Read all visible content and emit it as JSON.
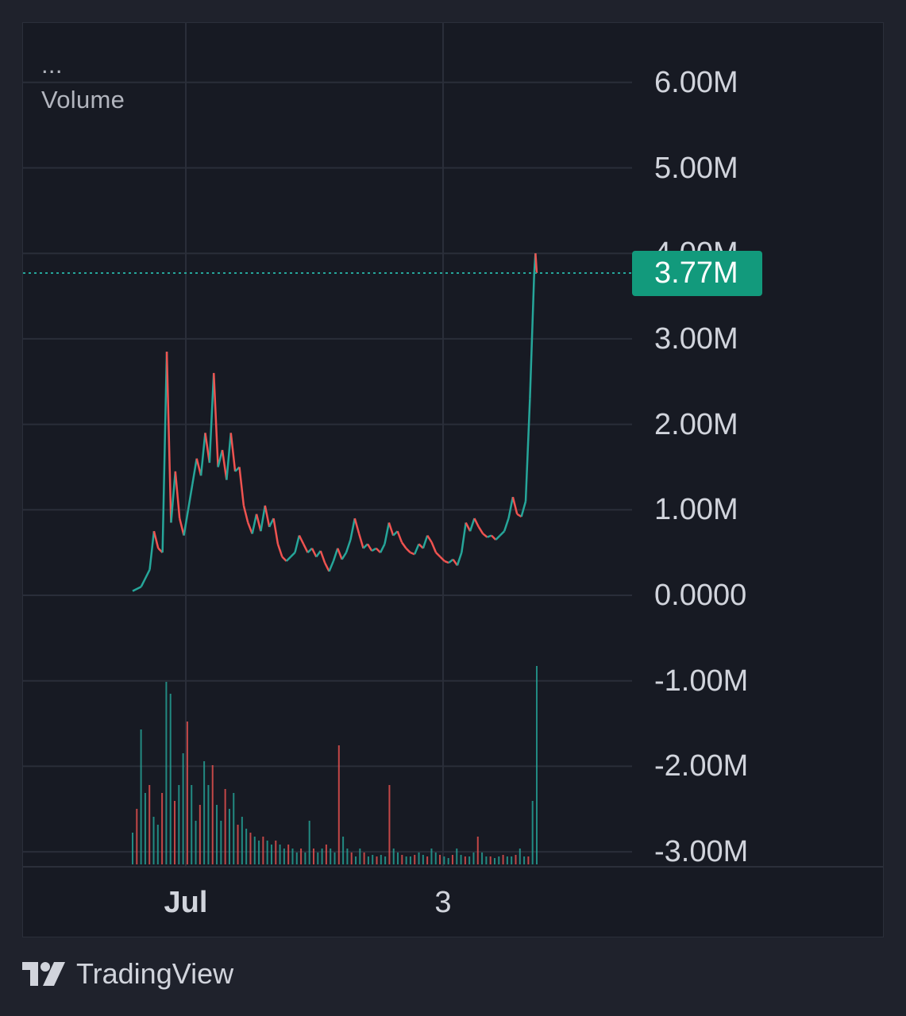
{
  "legend": {
    "dots": "...",
    "label": "Volume"
  },
  "price_badge": {
    "value": "3.77M",
    "color": "#129a7c"
  },
  "branding": {
    "logo_icon": "tradingview-logo-icon",
    "name": "TradingView"
  },
  "colors": {
    "up": "#26a69a",
    "down": "#ef5350",
    "grid": "#2a2e39",
    "background": "#171a23"
  },
  "chart_data": {
    "type": "candlestick",
    "title": "",
    "legend_label": "Volume",
    "y_axis": {
      "range": [
        -3000000,
        6000000
      ],
      "ticks": [
        {
          "value": 6000000,
          "label": "6.00M"
        },
        {
          "value": 5000000,
          "label": "5.00M"
        },
        {
          "value": 3000000,
          "label": "3.00M"
        },
        {
          "value": 2000000,
          "label": "2.00M"
        },
        {
          "value": 1000000,
          "label": "1.00M"
        },
        {
          "value": 0,
          "label": "0.0000"
        },
        {
          "value": -1000000,
          "label": "-1.00M"
        },
        {
          "value": -2000000,
          "label": "-2.00M"
        },
        {
          "value": -3000000,
          "label": "-3.00M"
        }
      ]
    },
    "x_axis": {
      "ticks": [
        {
          "label": "Jul"
        },
        {
          "label": "3"
        }
      ]
    },
    "current_value": 3770000,
    "current_value_label": "3.77M",
    "grid": true,
    "price_line_points": [
      [
        0,
        0.05
      ],
      [
        2,
        0.1
      ],
      [
        4,
        0.3
      ],
      [
        5,
        0.75
      ],
      [
        6,
        0.55
      ],
      [
        7,
        0.5
      ],
      [
        8,
        2.85
      ],
      [
        9,
        0.85
      ],
      [
        10,
        1.45
      ],
      [
        11,
        0.9
      ],
      [
        12,
        0.7
      ],
      [
        13,
        1.0
      ],
      [
        14,
        1.3
      ],
      [
        15,
        1.6
      ],
      [
        16,
        1.4
      ],
      [
        17,
        1.9
      ],
      [
        18,
        1.55
      ],
      [
        19,
        2.6
      ],
      [
        20,
        1.5
      ],
      [
        21,
        1.7
      ],
      [
        22,
        1.35
      ],
      [
        23,
        1.9
      ],
      [
        24,
        1.45
      ],
      [
        25,
        1.5
      ],
      [
        26,
        1.05
      ],
      [
        27,
        0.85
      ],
      [
        28,
        0.72
      ],
      [
        29,
        0.95
      ],
      [
        30,
        0.75
      ],
      [
        31,
        1.05
      ],
      [
        32,
        0.8
      ],
      [
        33,
        0.9
      ],
      [
        34,
        0.6
      ],
      [
        35,
        0.45
      ],
      [
        36,
        0.4
      ],
      [
        37,
        0.45
      ],
      [
        38,
        0.5
      ],
      [
        39,
        0.7
      ],
      [
        40,
        0.6
      ],
      [
        41,
        0.5
      ],
      [
        42,
        0.55
      ],
      [
        43,
        0.45
      ],
      [
        44,
        0.52
      ],
      [
        45,
        0.38
      ],
      [
        46,
        0.28
      ],
      [
        47,
        0.4
      ],
      [
        48,
        0.55
      ],
      [
        49,
        0.42
      ],
      [
        50,
        0.5
      ],
      [
        51,
        0.65
      ],
      [
        52,
        0.9
      ],
      [
        53,
        0.72
      ],
      [
        54,
        0.55
      ],
      [
        55,
        0.6
      ],
      [
        56,
        0.52
      ],
      [
        57,
        0.55
      ],
      [
        58,
        0.5
      ],
      [
        59,
        0.6
      ],
      [
        60,
        0.85
      ],
      [
        61,
        0.7
      ],
      [
        62,
        0.75
      ],
      [
        63,
        0.62
      ],
      [
        64,
        0.55
      ],
      [
        65,
        0.5
      ],
      [
        66,
        0.48
      ],
      [
        67,
        0.6
      ],
      [
        68,
        0.55
      ],
      [
        69,
        0.7
      ],
      [
        70,
        0.62
      ],
      [
        71,
        0.5
      ],
      [
        72,
        0.45
      ],
      [
        73,
        0.4
      ],
      [
        74,
        0.38
      ],
      [
        75,
        0.42
      ],
      [
        76,
        0.35
      ],
      [
        77,
        0.5
      ],
      [
        78,
        0.85
      ],
      [
        79,
        0.75
      ],
      [
        80,
        0.9
      ],
      [
        81,
        0.8
      ],
      [
        82,
        0.72
      ],
      [
        83,
        0.68
      ],
      [
        84,
        0.7
      ],
      [
        85,
        0.65
      ],
      [
        86,
        0.7
      ],
      [
        87,
        0.75
      ],
      [
        88,
        0.9
      ],
      [
        89,
        1.15
      ],
      [
        90,
        0.95
      ],
      [
        91,
        0.92
      ],
      [
        92,
        1.1
      ],
      [
        93,
        2.3
      ],
      [
        94,
        3.77
      ],
      [
        94.3,
        4.0
      ],
      [
        94.6,
        3.77
      ]
    ],
    "volume_bars": [
      0.4,
      0.7,
      1.7,
      0.9,
      1.0,
      0.6,
      0.5,
      0.9,
      2.3,
      2.15,
      0.8,
      1.0,
      1.4,
      1.8,
      1.0,
      0.55,
      0.75,
      1.3,
      1.0,
      1.25,
      0.75,
      0.55,
      0.95,
      0.7,
      0.9,
      0.5,
      0.6,
      0.45,
      0.4,
      0.35,
      0.3,
      0.35,
      0.3,
      0.25,
      0.3,
      0.25,
      0.2,
      0.25,
      0.2,
      0.15,
      0.2,
      0.15,
      0.55,
      0.2,
      0.15,
      0.2,
      0.25,
      0.2,
      0.15,
      1.5,
      0.35,
      0.2,
      0.15,
      0.1,
      0.2,
      0.15,
      0.1,
      0.12,
      0.1,
      0.12,
      0.1,
      1.0,
      0.2,
      0.15,
      0.12,
      0.1,
      0.1,
      0.12,
      0.15,
      0.12,
      0.1,
      0.2,
      0.15,
      0.12,
      0.1,
      0.08,
      0.12,
      0.2,
      0.12,
      0.1,
      0.1,
      0.15,
      0.35,
      0.15,
      0.1,
      0.1,
      0.08,
      0.1,
      0.12,
      0.1,
      0.1,
      0.12,
      0.2,
      0.1,
      0.1,
      0.8,
      2.5
    ]
  }
}
